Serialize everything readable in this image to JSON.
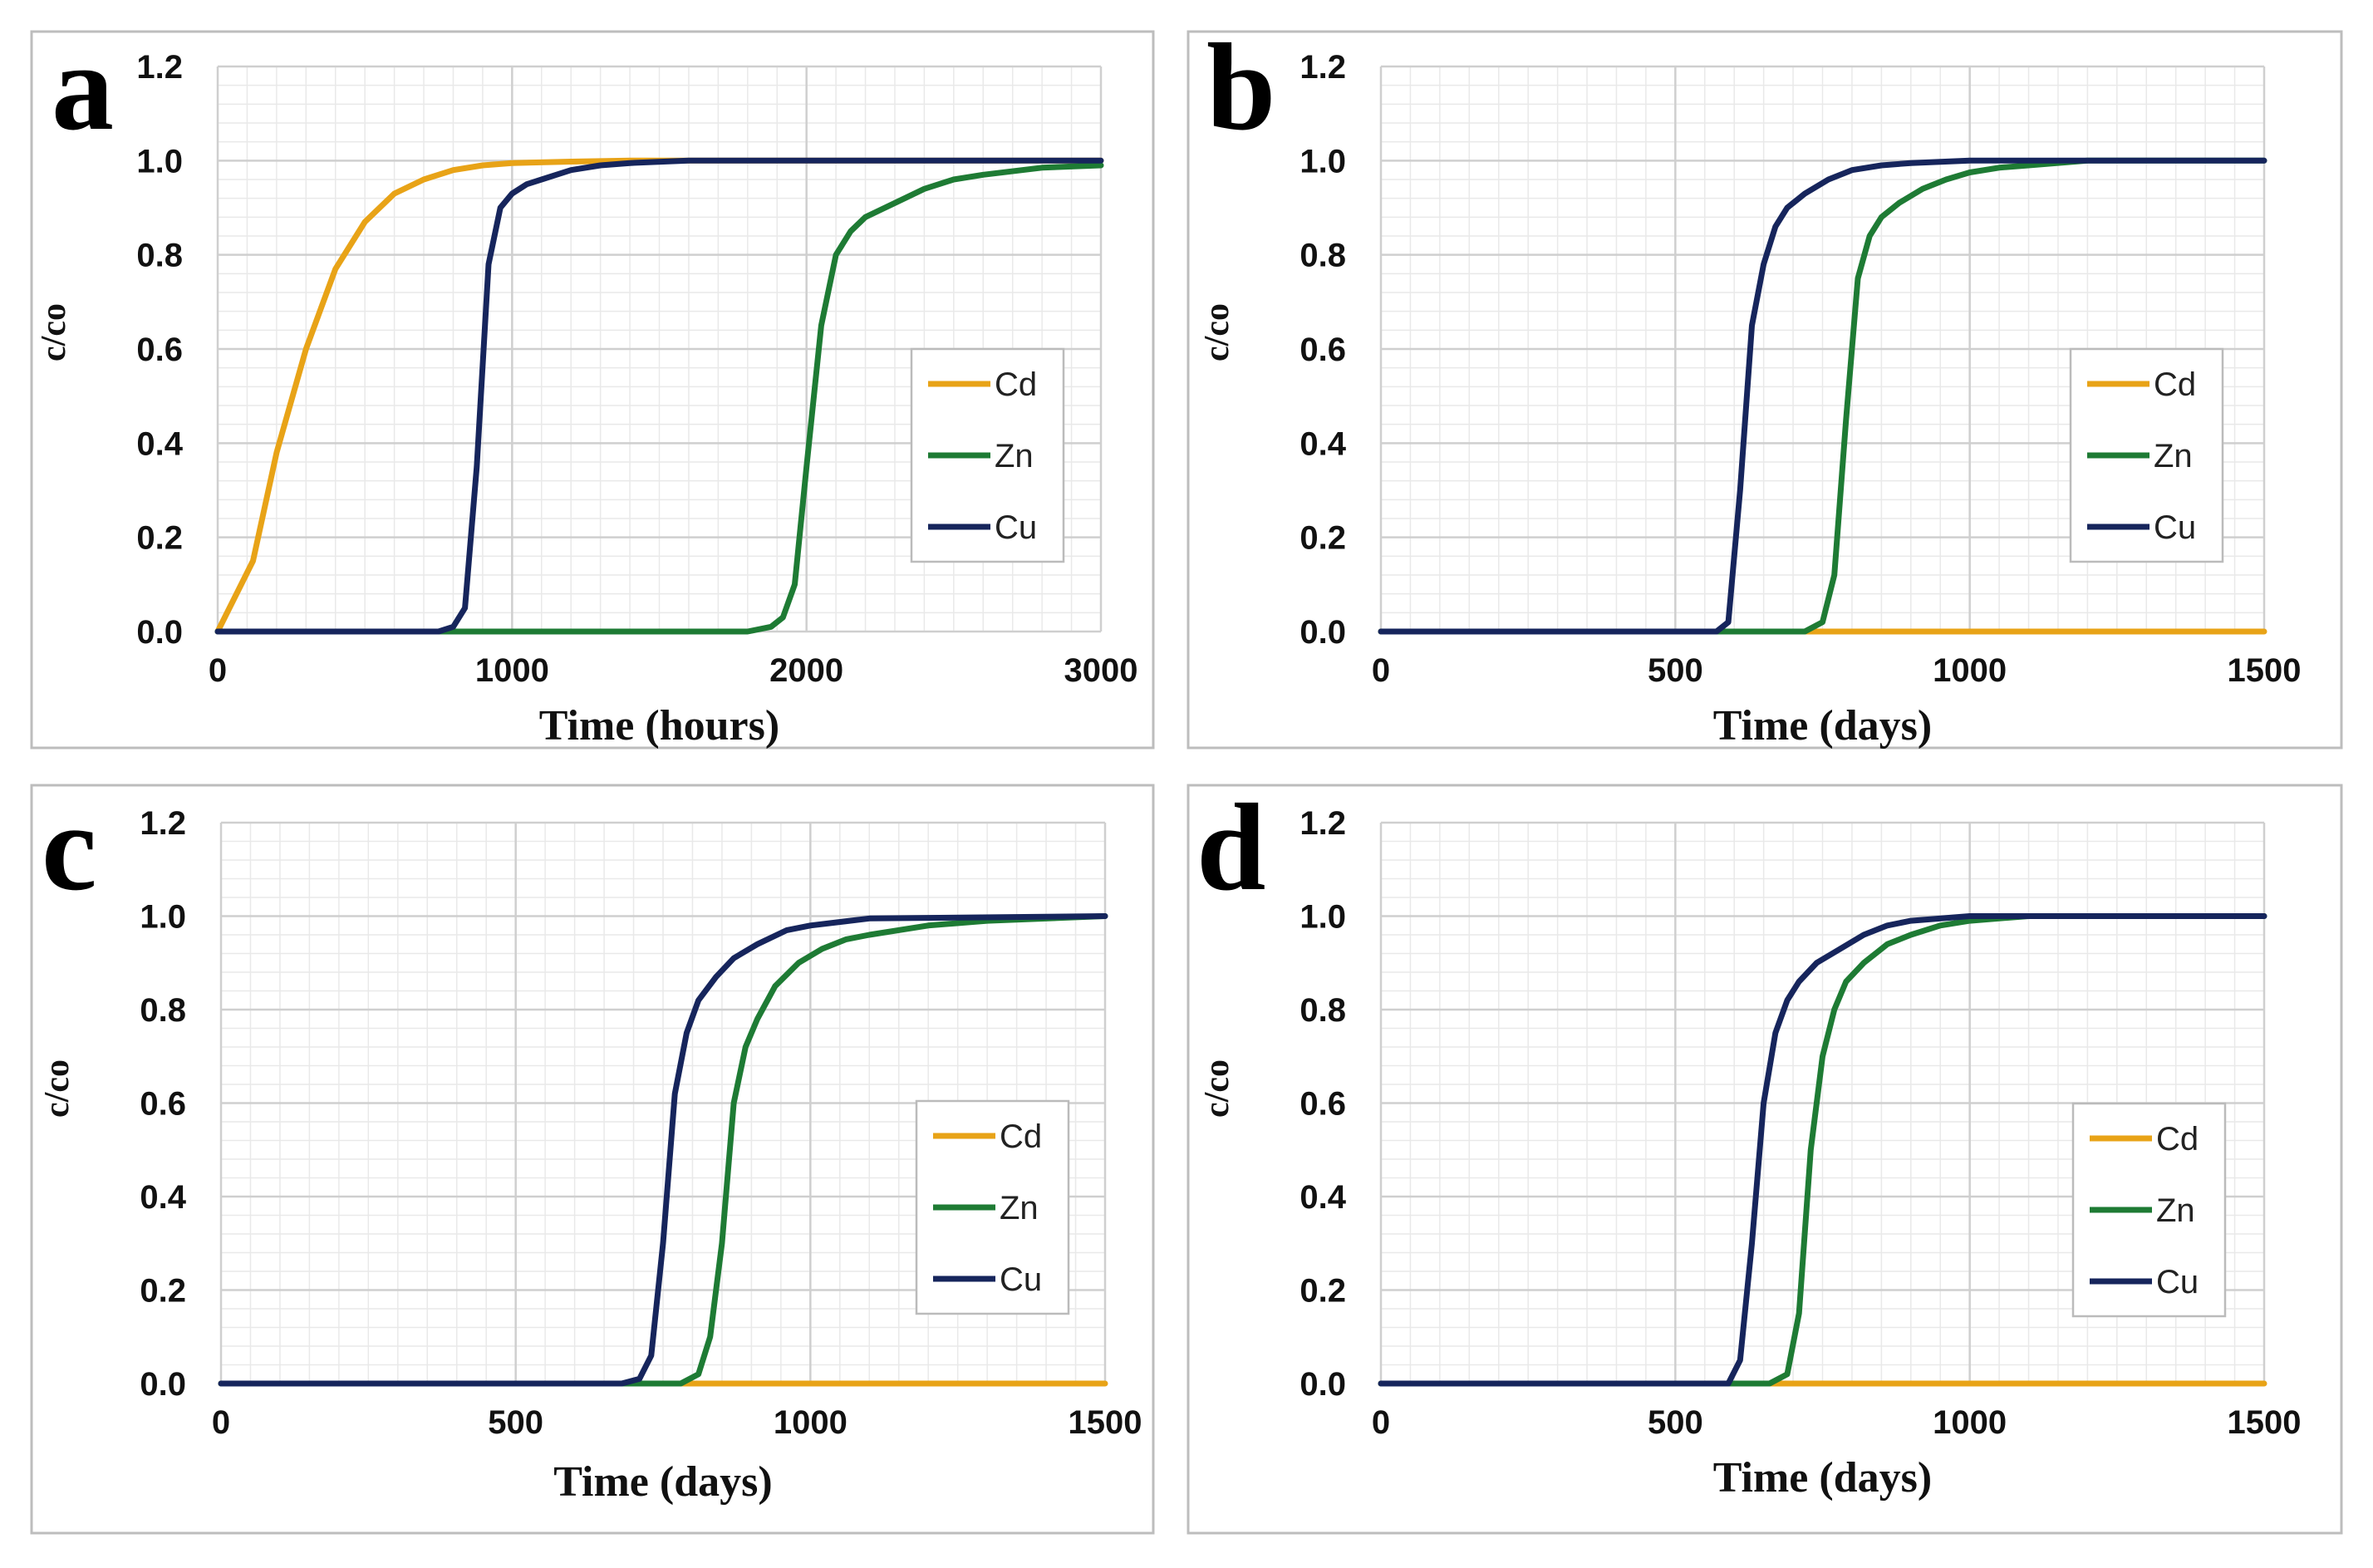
{
  "colors": {
    "Cd": "#e8a317",
    "Zn": "#1e7b34",
    "Cu": "#16255c",
    "grid_major": "#cfcfcf",
    "grid_minor": "#e9e9e9",
    "panel_border": "#bdbdbd"
  },
  "chart_data": [
    {
      "type": "line",
      "panel_letter": "a",
      "xlabel": "Time (hours)",
      "ylabel": "c/co",
      "xlim": [
        0,
        3000
      ],
      "ylim": [
        0,
        1.2
      ],
      "xticks": [
        "0",
        "1000",
        "2000",
        "3000"
      ],
      "yticks": [
        "0.0",
        "0.2",
        "0.4",
        "0.6",
        "0.8",
        "1.0",
        "1.2"
      ],
      "legend": [
        "Cd",
        "Zn",
        "Cu"
      ],
      "series": [
        {
          "name": "Cd",
          "x": [
            0,
            120,
            200,
            300,
            400,
            500,
            600,
            700,
            800,
            900,
            1000,
            1200,
            1400,
            3000
          ],
          "y": [
            0.0,
            0.15,
            0.38,
            0.6,
            0.77,
            0.87,
            0.93,
            0.96,
            0.98,
            0.99,
            0.995,
            0.998,
            1.0,
            1.0
          ]
        },
        {
          "name": "Zn",
          "x": [
            0,
            1800,
            1880,
            1920,
            1960,
            2000,
            2050,
            2100,
            2150,
            2200,
            2300,
            2400,
            2500,
            2600,
            2800,
            3000
          ],
          "y": [
            0.0,
            0.0,
            0.01,
            0.03,
            0.1,
            0.35,
            0.65,
            0.8,
            0.85,
            0.88,
            0.91,
            0.94,
            0.96,
            0.97,
            0.985,
            0.99
          ]
        },
        {
          "name": "Cu",
          "x": [
            0,
            750,
            800,
            840,
            880,
            920,
            960,
            1000,
            1050,
            1100,
            1200,
            1300,
            1400,
            1600,
            3000
          ],
          "y": [
            0.0,
            0.0,
            0.01,
            0.05,
            0.35,
            0.78,
            0.9,
            0.93,
            0.95,
            0.96,
            0.98,
            0.99,
            0.995,
            1.0,
            1.0
          ]
        }
      ]
    },
    {
      "type": "line",
      "panel_letter": "b",
      "xlabel": "Time (days)",
      "ylabel": "c/co",
      "xlim": [
        0,
        1500
      ],
      "ylim": [
        0,
        1.2
      ],
      "xticks": [
        "0",
        "500",
        "1000",
        "1500"
      ],
      "yticks": [
        "0.0",
        "0.2",
        "0.4",
        "0.6",
        "0.8",
        "1.0",
        "1.2"
      ],
      "legend": [
        "Cd",
        "Zn",
        "Cu"
      ],
      "series": [
        {
          "name": "Cd",
          "x": [
            0,
            1500
          ],
          "y": [
            0.0,
            0.0
          ]
        },
        {
          "name": "Zn",
          "x": [
            0,
            720,
            750,
            770,
            790,
            810,
            830,
            850,
            880,
            920,
            960,
            1000,
            1050,
            1100,
            1200,
            1500
          ],
          "y": [
            0.0,
            0.0,
            0.02,
            0.12,
            0.45,
            0.75,
            0.84,
            0.88,
            0.91,
            0.94,
            0.96,
            0.975,
            0.985,
            0.99,
            1.0,
            1.0
          ]
        },
        {
          "name": "Cu",
          "x": [
            0,
            570,
            590,
            610,
            630,
            650,
            670,
            690,
            720,
            760,
            800,
            850,
            900,
            1000,
            1500
          ],
          "y": [
            0.0,
            0.0,
            0.02,
            0.3,
            0.65,
            0.78,
            0.86,
            0.9,
            0.93,
            0.96,
            0.98,
            0.99,
            0.995,
            1.0,
            1.0
          ]
        }
      ]
    },
    {
      "type": "line",
      "panel_letter": "c",
      "xlabel": "Time (days)",
      "ylabel": "c/co",
      "xlim": [
        0,
        1500
      ],
      "ylim": [
        0,
        1.2
      ],
      "xticks": [
        "0",
        "500",
        "1000",
        "1500"
      ],
      "yticks": [
        "0.0",
        "0.2",
        "0.4",
        "0.6",
        "0.8",
        "1.0",
        "1.2"
      ],
      "legend": [
        "Cd",
        "Zn",
        "Cu"
      ],
      "series": [
        {
          "name": "Cd",
          "x": [
            0,
            1500
          ],
          "y": [
            0.0,
            0.0
          ]
        },
        {
          "name": "Zn",
          "x": [
            0,
            780,
            810,
            830,
            850,
            870,
            890,
            910,
            940,
            980,
            1020,
            1060,
            1100,
            1200,
            1300,
            1500
          ],
          "y": [
            0.0,
            0.0,
            0.02,
            0.1,
            0.3,
            0.6,
            0.72,
            0.78,
            0.85,
            0.9,
            0.93,
            0.95,
            0.96,
            0.98,
            0.99,
            1.0
          ]
        },
        {
          "name": "Cu",
          "x": [
            0,
            680,
            710,
            730,
            750,
            770,
            790,
            810,
            840,
            870,
            910,
            960,
            1000,
            1100,
            1500
          ],
          "y": [
            0.0,
            0.0,
            0.01,
            0.06,
            0.3,
            0.62,
            0.75,
            0.82,
            0.87,
            0.91,
            0.94,
            0.97,
            0.98,
            0.995,
            1.0
          ]
        }
      ]
    },
    {
      "type": "line",
      "panel_letter": "d",
      "xlabel": "Time (days)",
      "ylabel": "c/co",
      "xlim": [
        0,
        1500
      ],
      "ylim": [
        0,
        1.2
      ],
      "xticks": [
        "0",
        "500",
        "1000",
        "1500"
      ],
      "yticks": [
        "0.0",
        "0.2",
        "0.4",
        "0.6",
        "0.8",
        "1.0",
        "1.2"
      ],
      "legend": [
        "Cd",
        "Zn",
        "Cu"
      ],
      "series": [
        {
          "name": "Cd",
          "x": [
            0,
            1500
          ],
          "y": [
            0.0,
            0.0
          ]
        },
        {
          "name": "Zn",
          "x": [
            0,
            660,
            690,
            710,
            730,
            750,
            770,
            790,
            820,
            860,
            900,
            950,
            1000,
            1100,
            1500
          ],
          "y": [
            0.0,
            0.0,
            0.02,
            0.15,
            0.5,
            0.7,
            0.8,
            0.86,
            0.9,
            0.94,
            0.96,
            0.98,
            0.99,
            1.0,
            1.0
          ]
        },
        {
          "name": "Cu",
          "x": [
            0,
            590,
            610,
            630,
            650,
            670,
            690,
            710,
            740,
            780,
            820,
            860,
            900,
            1000,
            1500
          ],
          "y": [
            0.0,
            0.0,
            0.05,
            0.3,
            0.6,
            0.75,
            0.82,
            0.86,
            0.9,
            0.93,
            0.96,
            0.98,
            0.99,
            1.0,
            1.0
          ]
        }
      ]
    }
  ]
}
